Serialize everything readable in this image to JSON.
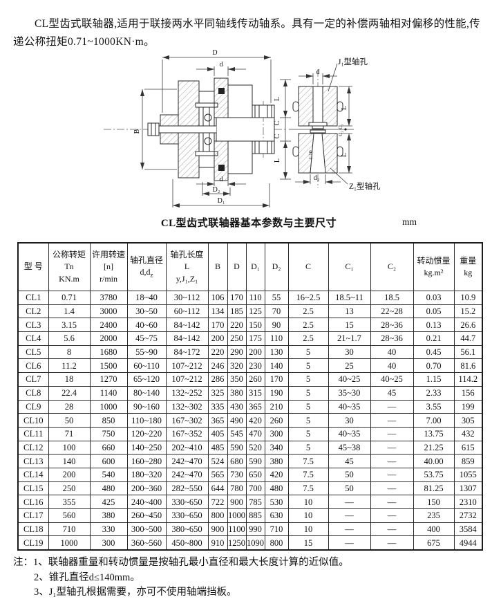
{
  "intro": "CL型齿式联轴器,适用于联接两水平同轴线传动轴系。具有一定的补偿两轴相对偏移的性能,传递公称扭矩0.71~1000KN·m。",
  "diagram": {
    "left_view": {
      "dim_top_outer": "D",
      "dim_top_bore": "d",
      "dim_width": "B",
      "dim_hub_len_top": "L",
      "dim_gap_top": "C",
      "dim_gap_bottom": "C",
      "dim_hub_len_bottom": "L",
      "dim_bottom_bore": "d",
      "dim_gear_dia": "D₂",
      "dim_flange_dia": "D₁"
    },
    "right_view": {
      "hole_type_top": "J₁型轴孔",
      "hole_type_bottom": "Z₁型轴孔",
      "dim_bore": "d",
      "dim_len_top": "L",
      "dim_c1": "C₁",
      "dim_c2": "C₂",
      "dim_taper": "1:10",
      "dim_bore_bottom": "d₂",
      "dim_len_bottom": "L"
    }
  },
  "table": {
    "title": "CL型齿式联轴器基本参数与主要尺寸",
    "unit": "mm",
    "headers": [
      {
        "lines": [
          "型 号"
        ]
      },
      {
        "lines": [
          "公称转矩",
          "Tn",
          "KN.m"
        ]
      },
      {
        "lines": [
          "许用转速",
          "[n]",
          "r/min"
        ]
      },
      {
        "lines": [
          "轴孔直径",
          "d,d_z_"
        ]
      },
      {
        "lines": [
          "轴孔长度",
          "L",
          "y,J₁,Z₁"
        ]
      },
      {
        "lines": [
          "B"
        ]
      },
      {
        "lines": [
          "D"
        ]
      },
      {
        "lines": [
          "D₁"
        ]
      },
      {
        "lines": [
          "D₂"
        ]
      },
      {
        "lines": [
          "C"
        ]
      },
      {
        "lines": [
          "C₁"
        ]
      },
      {
        "lines": [
          "C₂"
        ]
      },
      {
        "lines": [
          "转动惯量",
          "kg.m²"
        ]
      },
      {
        "lines": [
          "重量",
          "kg"
        ]
      }
    ],
    "rows": [
      [
        "CL1",
        "0.71",
        "3780",
        "18~40",
        "30~112",
        "106",
        "170",
        "110",
        "55",
        "16~2.5",
        "18.5~11",
        "18.5",
        "0.03",
        "10.9"
      ],
      [
        "CL2",
        "1.4",
        "3000",
        "30~50",
        "60~112",
        "134",
        "185",
        "125",
        "70",
        "2.5",
        "13",
        "22~28",
        "0.05",
        "15.2"
      ],
      [
        "CL3",
        "3.15",
        "2400",
        "40~60",
        "84~142",
        "170",
        "220",
        "150",
        "90",
        "2.5",
        "15",
        "28~36",
        "0.13",
        "26.6"
      ],
      [
        "CL4",
        "5.6",
        "2000",
        "45~75",
        "84~142",
        "200",
        "250",
        "175",
        "110",
        "2.5",
        "21~1.7",
        "28~36",
        "0.21",
        "44.7"
      ],
      [
        "CL5",
        "8",
        "1680",
        "55~90",
        "84~172",
        "220",
        "290",
        "200",
        "130",
        "5",
        "30",
        "40",
        "0.45",
        "56.1"
      ],
      [
        "CL6",
        "11.2",
        "1500",
        "60~110",
        "107~212",
        "246",
        "320",
        "230",
        "140",
        "5",
        "25",
        "40",
        "0.70",
        "81.6"
      ],
      [
        "CL7",
        "18",
        "1270",
        "65~120",
        "107~212",
        "286",
        "350",
        "260",
        "170",
        "5",
        "40~25",
        "40~25",
        "1.15",
        "114.2"
      ],
      [
        "CL8",
        "22.4",
        "1140",
        "80~140",
        "132~252",
        "325",
        "380",
        "315",
        "190",
        "5",
        "35~30",
        "45",
        "2.33",
        "156"
      ],
      [
        "CL9",
        "28",
        "1000",
        "90~160",
        "132~302",
        "335",
        "430",
        "365",
        "210",
        "5",
        "40~35",
        "—",
        "3.55",
        "199"
      ],
      [
        "CL10",
        "50",
        "850",
        "110~180",
        "167~302",
        "365",
        "490",
        "420",
        "260",
        "5",
        "30",
        "—",
        "7.00",
        "305"
      ],
      [
        "CL11",
        "71",
        "750",
        "120~220",
        "167~352",
        "405",
        "545",
        "470",
        "300",
        "5",
        "40~35",
        "—",
        "13.75",
        "432"
      ],
      [
        "CL12",
        "100",
        "660",
        "140~250",
        "202~410",
        "485",
        "590",
        "520",
        "340",
        "5",
        "45~38",
        "—",
        "21.25",
        "615"
      ],
      [
        "CL13",
        "140",
        "600",
        "160~280",
        "242~470",
        "524",
        "680",
        "590",
        "380",
        "7.5",
        "45",
        "—",
        "40.00",
        "859"
      ],
      [
        "CL14",
        "200",
        "540",
        "180~320",
        "242~470",
        "565",
        "730",
        "650",
        "420",
        "7.5",
        "50",
        "—",
        "53.75",
        "1055"
      ],
      [
        "CL15",
        "250",
        "480",
        "200~360",
        "282~550",
        "644",
        "780",
        "700",
        "480",
        "7.5",
        "50",
        "—",
        "81.25",
        "1307"
      ],
      [
        "CL16",
        "355",
        "425",
        "240~400",
        "330~650",
        "722",
        "900",
        "785",
        "530",
        "10",
        "—",
        "—",
        "150",
        "2310"
      ],
      [
        "CL17",
        "560",
        "380",
        "260~450",
        "330~650",
        "800",
        "1000",
        "885",
        "630",
        "10",
        "—",
        "—",
        "235",
        "2732"
      ],
      [
        "CL18",
        "710",
        "330",
        "300~500",
        "380~650",
        "900",
        "1100",
        "990",
        "710",
        "10",
        "—",
        "—",
        "400",
        "3584"
      ],
      [
        "CL19",
        "1000",
        "300",
        "360~560",
        "450~800",
        "910",
        "1250",
        "1090",
        "800",
        "15",
        "—",
        "—",
        "675",
        "4944"
      ]
    ]
  },
  "notes": {
    "prefix": "注：",
    "items": [
      "1、联轴器重量和转动惯量是按轴孔最小直径和最大长度计算的近似值。",
      "2、锥孔直径d≤140mm。",
      "3、J₁型轴孔根据需要，亦可不使用轴端挡板。"
    ]
  }
}
